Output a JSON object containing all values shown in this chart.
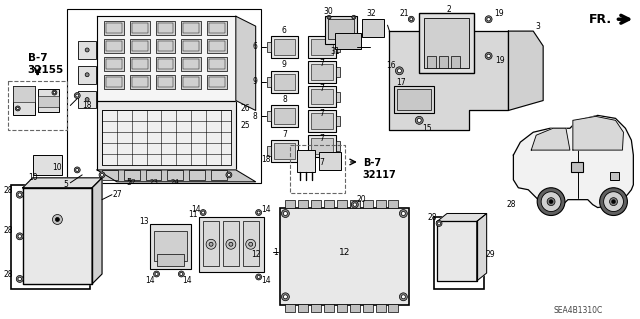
{
  "bg_color": "#ffffff",
  "fig_width": 6.4,
  "fig_height": 3.19,
  "dpi": 100,
  "watermark": "SEA4B1310C",
  "fr_label": "FR.",
  "b7_32155_label": "B-7\n32155",
  "b7_32117_label": "B-7\n32117",
  "line_color": "#000000",
  "gray1": "#cccccc",
  "gray2": "#e8e8e8",
  "gray3": "#aaaaaa",
  "dashed_color": "#666666"
}
